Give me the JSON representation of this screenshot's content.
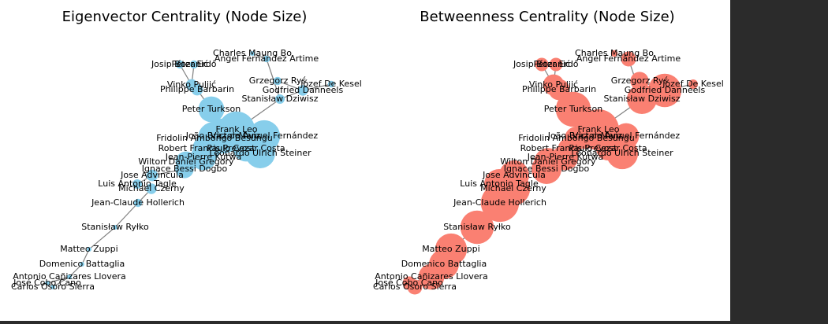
{
  "panels": [
    {
      "title": "Eigenvector Centrality (Node Size)",
      "sizes": [
        0.01,
        0.02,
        0.03,
        0.03,
        0.03,
        0.02,
        0.06,
        0.06,
        0.05,
        0.04,
        0.3,
        0.6,
        0.55,
        0.5,
        0.45,
        0.35,
        0.3,
        0.4,
        0.3,
        0.2,
        0.15,
        0.06,
        0.04,
        0.05,
        0.03,
        0.01,
        0.01,
        0.01,
        0.01,
        0.01,
        0.01
      ]
    },
    {
      "title": "Betweenness Centrality (Node Size)",
      "sizes": [
        0.02,
        0.1,
        0.08,
        0.08,
        0.15,
        0.04,
        0.2,
        0.2,
        0.5,
        0.4,
        0.55,
        0.75,
        0.3,
        0.25,
        0.3,
        0.2,
        0.25,
        0.45,
        0.3,
        0.35,
        0.4,
        0.4,
        0.4,
        0.5,
        0.65,
        0.5,
        0.45,
        0.4,
        0.3,
        0.08,
        0.1
      ]
    }
  ],
  "nodes": [
    {
      "label": "Charles Maung Bo"
    },
    {
      "label": "Angel Fernández Artime"
    },
    {
      "label": "Josip Bozanić"
    },
    {
      "label": "Péter Erdő"
    },
    {
      "label": "Grzegorz Ryś"
    },
    {
      "label": "Józef De Kesel"
    },
    {
      "label": "Vinko Puljić"
    },
    {
      "label": "Philippe Barbarin"
    },
    {
      "label": "Godfried Danneels"
    },
    {
      "label": "Stanisław Dziwisz"
    },
    {
      "label": "Peter Turkson"
    },
    {
      "label": "Frank Leo"
    },
    {
      "label": "João Braz de Aviz"
    },
    {
      "label": "Fridolin Ambongo Besungu"
    },
    {
      "label": "Víctor Manuel Fernández"
    },
    {
      "label": "Robert Francis Prevost"
    },
    {
      "label": "Paulo Cezar Costa"
    },
    {
      "label": "Leonardo Ulrich Steiner"
    },
    {
      "label": "Jean-Pierre Kutwa"
    },
    {
      "label": "Wilton Daniel Gregory"
    },
    {
      "label": "Ignace Bessi Dogbo"
    },
    {
      "label": "Jose Advincula"
    },
    {
      "label": "Luis Antonio Tagle"
    },
    {
      "label": "Michael Czerny"
    },
    {
      "label": "Jean-Claude Hollerich"
    },
    {
      "label": "Stanisław Ryłko"
    },
    {
      "label": "Matteo Zuppi"
    },
    {
      "label": "Domenico Battaglia"
    },
    {
      "label": "Antonio Cañizares Llovera"
    },
    {
      "label": "José Cobo Cano"
    },
    {
      "label": "Carlos Osoro Sierra"
    }
  ]
}
